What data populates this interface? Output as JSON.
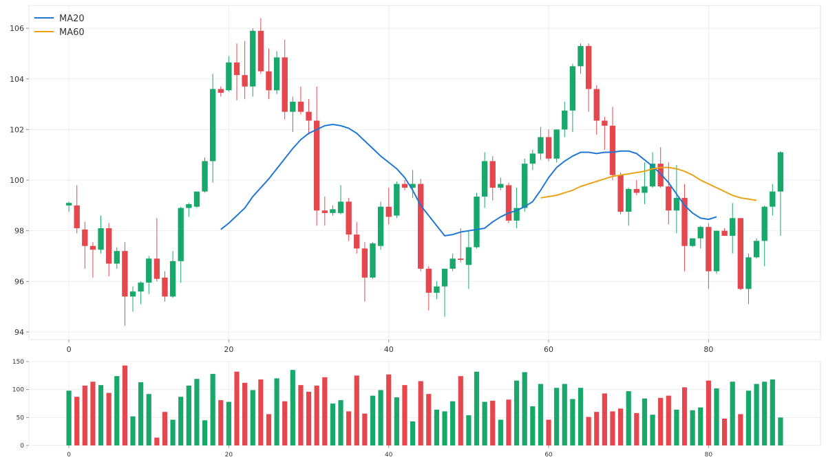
{
  "chart_data": {
    "type": "candlestick",
    "x": [
      0,
      1,
      2,
      3,
      4,
      5,
      6,
      7,
      8,
      9,
      10,
      11,
      12,
      13,
      14,
      15,
      16,
      17,
      18,
      19,
      20,
      21,
      22,
      23,
      24,
      25,
      26,
      27,
      28,
      29,
      30,
      31,
      32,
      33,
      34,
      35,
      36,
      37,
      38,
      39,
      40,
      41,
      42,
      43,
      44,
      45,
      46,
      47,
      48,
      49,
      50,
      51,
      52,
      53,
      54,
      55,
      56,
      57,
      58,
      59,
      60,
      61,
      62,
      63,
      64,
      65,
      66,
      67,
      68,
      69,
      70,
      71,
      72,
      73,
      74,
      75,
      76,
      77,
      78,
      79,
      80,
      81,
      82,
      83,
      84,
      85,
      86,
      87,
      88,
      89
    ],
    "ohlc": [
      [
        99.0,
        99.15,
        98.75,
        99.1
      ],
      [
        99.0,
        99.8,
        97.9,
        98.1
      ],
      [
        98.05,
        98.35,
        96.5,
        97.4
      ],
      [
        97.4,
        97.55,
        96.15,
        97.25
      ],
      [
        97.25,
        98.6,
        97.1,
        98.1
      ],
      [
        98.1,
        98.3,
        96.2,
        96.7
      ],
      [
        96.7,
        97.35,
        96.5,
        97.2
      ],
      [
        97.2,
        97.55,
        94.25,
        95.4
      ],
      [
        95.4,
        95.8,
        94.8,
        95.6
      ],
      [
        95.6,
        96.0,
        95.1,
        95.95
      ],
      [
        95.95,
        97.0,
        95.5,
        96.9
      ],
      [
        96.9,
        98.5,
        96.0,
        96.1
      ],
      [
        96.15,
        96.4,
        95.2,
        95.4
      ],
      [
        95.4,
        97.2,
        95.35,
        96.8
      ],
      [
        96.8,
        98.95,
        95.95,
        98.9
      ],
      [
        98.9,
        99.1,
        98.55,
        99.05
      ],
      [
        98.95,
        99.5,
        98.9,
        99.55
      ],
      [
        99.55,
        100.9,
        99.5,
        100.75
      ],
      [
        100.75,
        104.2,
        99.9,
        103.6
      ],
      [
        103.6,
        103.7,
        103.3,
        103.45
      ],
      [
        103.55,
        104.9,
        103.5,
        104.65
      ],
      [
        104.65,
        105.4,
        103.15,
        104.15
      ],
      [
        104.15,
        105.5,
        103.2,
        103.7
      ],
      [
        103.7,
        106.0,
        103.3,
        105.9
      ],
      [
        105.9,
        106.4,
        104.2,
        104.3
      ],
      [
        104.3,
        105.2,
        103.2,
        103.55
      ],
      [
        103.55,
        105.1,
        103.4,
        104.85
      ],
      [
        104.85,
        105.55,
        102.4,
        102.7
      ],
      [
        102.7,
        103.3,
        101.9,
        103.1
      ],
      [
        103.1,
        103.7,
        102.6,
        102.7
      ],
      [
        102.7,
        103.2,
        101.8,
        102.35
      ],
      [
        102.35,
        103.7,
        98.2,
        98.8
      ],
      [
        98.8,
        99.35,
        98.2,
        98.7
      ],
      [
        98.7,
        99.0,
        98.6,
        98.85
      ],
      [
        98.7,
        99.8,
        98.65,
        99.15
      ],
      [
        99.15,
        99.3,
        97.6,
        97.85
      ],
      [
        97.85,
        98.35,
        97.1,
        97.3
      ],
      [
        97.3,
        97.55,
        95.2,
        96.15
      ],
      [
        96.15,
        97.55,
        96.1,
        97.5
      ],
      [
        97.4,
        99.15,
        97.25,
        98.95
      ],
      [
        98.95,
        99.7,
        98.25,
        98.55
      ],
      [
        98.6,
        99.95,
        98.5,
        99.85
      ],
      [
        99.85,
        100.0,
        99.6,
        99.7
      ],
      [
        99.7,
        100.4,
        99.3,
        99.85
      ],
      [
        99.85,
        100.05,
        96.4,
        96.5
      ],
      [
        96.5,
        96.6,
        94.85,
        95.55
      ],
      [
        95.55,
        96.0,
        95.3,
        95.8
      ],
      [
        95.8,
        96.5,
        94.6,
        96.5
      ],
      [
        96.5,
        97.1,
        96.4,
        96.9
      ],
      [
        96.9,
        98.1,
        96.75,
        96.85
      ],
      [
        96.65,
        98.0,
        95.7,
        97.35
      ],
      [
        97.35,
        99.5,
        97.3,
        99.35
      ],
      [
        99.35,
        101.1,
        98.9,
        100.75
      ],
      [
        100.75,
        100.95,
        99.2,
        99.7
      ],
      [
        99.7,
        100.1,
        99.6,
        99.85
      ],
      [
        99.8,
        99.9,
        98.3,
        98.4
      ],
      [
        98.4,
        99.7,
        98.1,
        98.9
      ],
      [
        98.9,
        100.85,
        98.75,
        100.65
      ],
      [
        100.65,
        101.2,
        100.4,
        101.05
      ],
      [
        101.05,
        102.1,
        100.8,
        101.7
      ],
      [
        101.7,
        102.0,
        100.75,
        100.85
      ],
      [
        100.85,
        102.0,
        100.7,
        102.0
      ],
      [
        102.0,
        103.1,
        101.7,
        102.75
      ],
      [
        102.75,
        104.6,
        101.9,
        104.5
      ],
      [
        104.5,
        105.4,
        104.2,
        105.3
      ],
      [
        105.3,
        105.4,
        102.7,
        103.6
      ],
      [
        103.6,
        103.75,
        101.8,
        102.35
      ],
      [
        102.35,
        102.5,
        101.2,
        102.15
      ],
      [
        102.15,
        102.9,
        100.0,
        100.2
      ],
      [
        100.2,
        100.3,
        98.65,
        98.75
      ],
      [
        98.75,
        99.7,
        98.2,
        99.65
      ],
      [
        99.65,
        100.0,
        99.4,
        99.5
      ],
      [
        99.5,
        100.7,
        99.05,
        99.75
      ],
      [
        99.75,
        101.1,
        99.7,
        100.65
      ],
      [
        100.65,
        101.3,
        99.7,
        99.75
      ],
      [
        99.75,
        100.7,
        98.25,
        98.8
      ],
      [
        98.8,
        100.6,
        97.9,
        99.3
      ],
      [
        99.3,
        99.85,
        96.4,
        97.4
      ],
      [
        97.4,
        97.7,
        97.35,
        97.7
      ],
      [
        97.7,
        98.2,
        97.3,
        98.15
      ],
      [
        98.15,
        98.3,
        95.7,
        96.4
      ],
      [
        96.4,
        98.0,
        96.3,
        98.0
      ],
      [
        98.0,
        98.1,
        97.8,
        97.8
      ],
      [
        97.8,
        99.1,
        97.1,
        98.5
      ],
      [
        98.5,
        98.5,
        95.65,
        95.7
      ],
      [
        95.7,
        97.1,
        95.1,
        96.95
      ],
      [
        96.95,
        97.7,
        96.9,
        97.6
      ],
      [
        97.6,
        99.0,
        96.6,
        98.95
      ],
      [
        98.95,
        99.85,
        98.6,
        99.55
      ],
      [
        99.55,
        101.15,
        97.8,
        101.1
      ]
    ],
    "ma20": {
      "start": 19,
      "values": [
        98.05,
        98.3,
        98.6,
        98.9,
        99.35,
        99.7,
        100.05,
        100.45,
        100.85,
        101.25,
        101.6,
        101.85,
        102.0,
        102.15,
        102.2,
        102.15,
        102.05,
        101.85,
        101.55,
        101.25,
        100.95,
        100.7,
        100.45,
        100.1,
        99.6,
        99.0,
        98.6,
        98.2,
        97.8,
        97.85,
        97.95,
        98.0,
        98.05,
        98.1,
        98.35,
        98.55,
        98.7,
        98.8,
        98.95,
        99.15,
        99.6,
        100.1,
        100.5,
        100.75,
        100.95,
        101.1,
        101.1,
        101.05,
        101.1,
        101.1,
        101.15,
        101.15,
        101.05,
        100.8,
        100.55,
        100.25,
        99.9,
        99.45,
        99.0,
        98.7,
        98.5,
        98.45,
        98.55
      ]
    },
    "ma60": {
      "start": 59,
      "values": [
        99.3,
        99.35,
        99.4,
        99.5,
        99.6,
        99.75,
        99.85,
        99.95,
        100.05,
        100.15,
        100.2,
        100.25,
        100.3,
        100.35,
        100.45,
        100.5,
        100.5,
        100.45,
        100.35,
        100.2,
        100.0,
        99.85,
        99.7,
        99.55,
        99.4,
        99.3,
        99.25,
        99.2
      ]
    },
    "legend": [
      "MA20",
      "MA60"
    ],
    "legend_placement": "top-left",
    "volume": [
      98,
      87,
      107,
      114,
      108,
      94,
      124,
      143,
      52,
      113,
      92,
      14,
      60,
      46,
      87,
      107,
      119,
      45,
      128,
      81,
      78,
      132,
      112,
      99,
      118,
      56,
      120,
      79,
      135,
      108,
      96,
      107,
      122,
      75,
      81,
      61,
      125,
      57,
      89,
      99,
      127,
      86,
      108,
      43,
      115,
      92,
      64,
      61,
      79,
      124,
      54,
      132,
      78,
      80,
      46,
      82,
      116,
      131,
      70,
      110,
      46,
      103,
      110,
      83,
      103,
      51,
      60,
      93,
      61,
      66,
      97,
      58,
      84,
      55,
      85,
      89,
      64,
      104,
      63,
      68,
      116,
      102,
      48,
      114,
      56,
      98,
      110,
      114,
      118,
      50
    ],
    "colors": {
      "up": "#18a86b",
      "down": "#e5474f",
      "ma20": "#1f77d4",
      "ma60": "#e8a317"
    },
    "price_axis": {
      "ylim": [
        93.7,
        106.9
      ],
      "ticks": [
        94,
        96,
        98,
        100,
        102,
        104,
        106
      ]
    },
    "volume_axis": {
      "ylim": [
        0,
        150
      ],
      "ticks": [
        0,
        50,
        100,
        150
      ]
    },
    "xlim": [
      -5,
      94
    ],
    "xticks": [
      0,
      20,
      40,
      60,
      80
    ],
    "grid": true
  }
}
